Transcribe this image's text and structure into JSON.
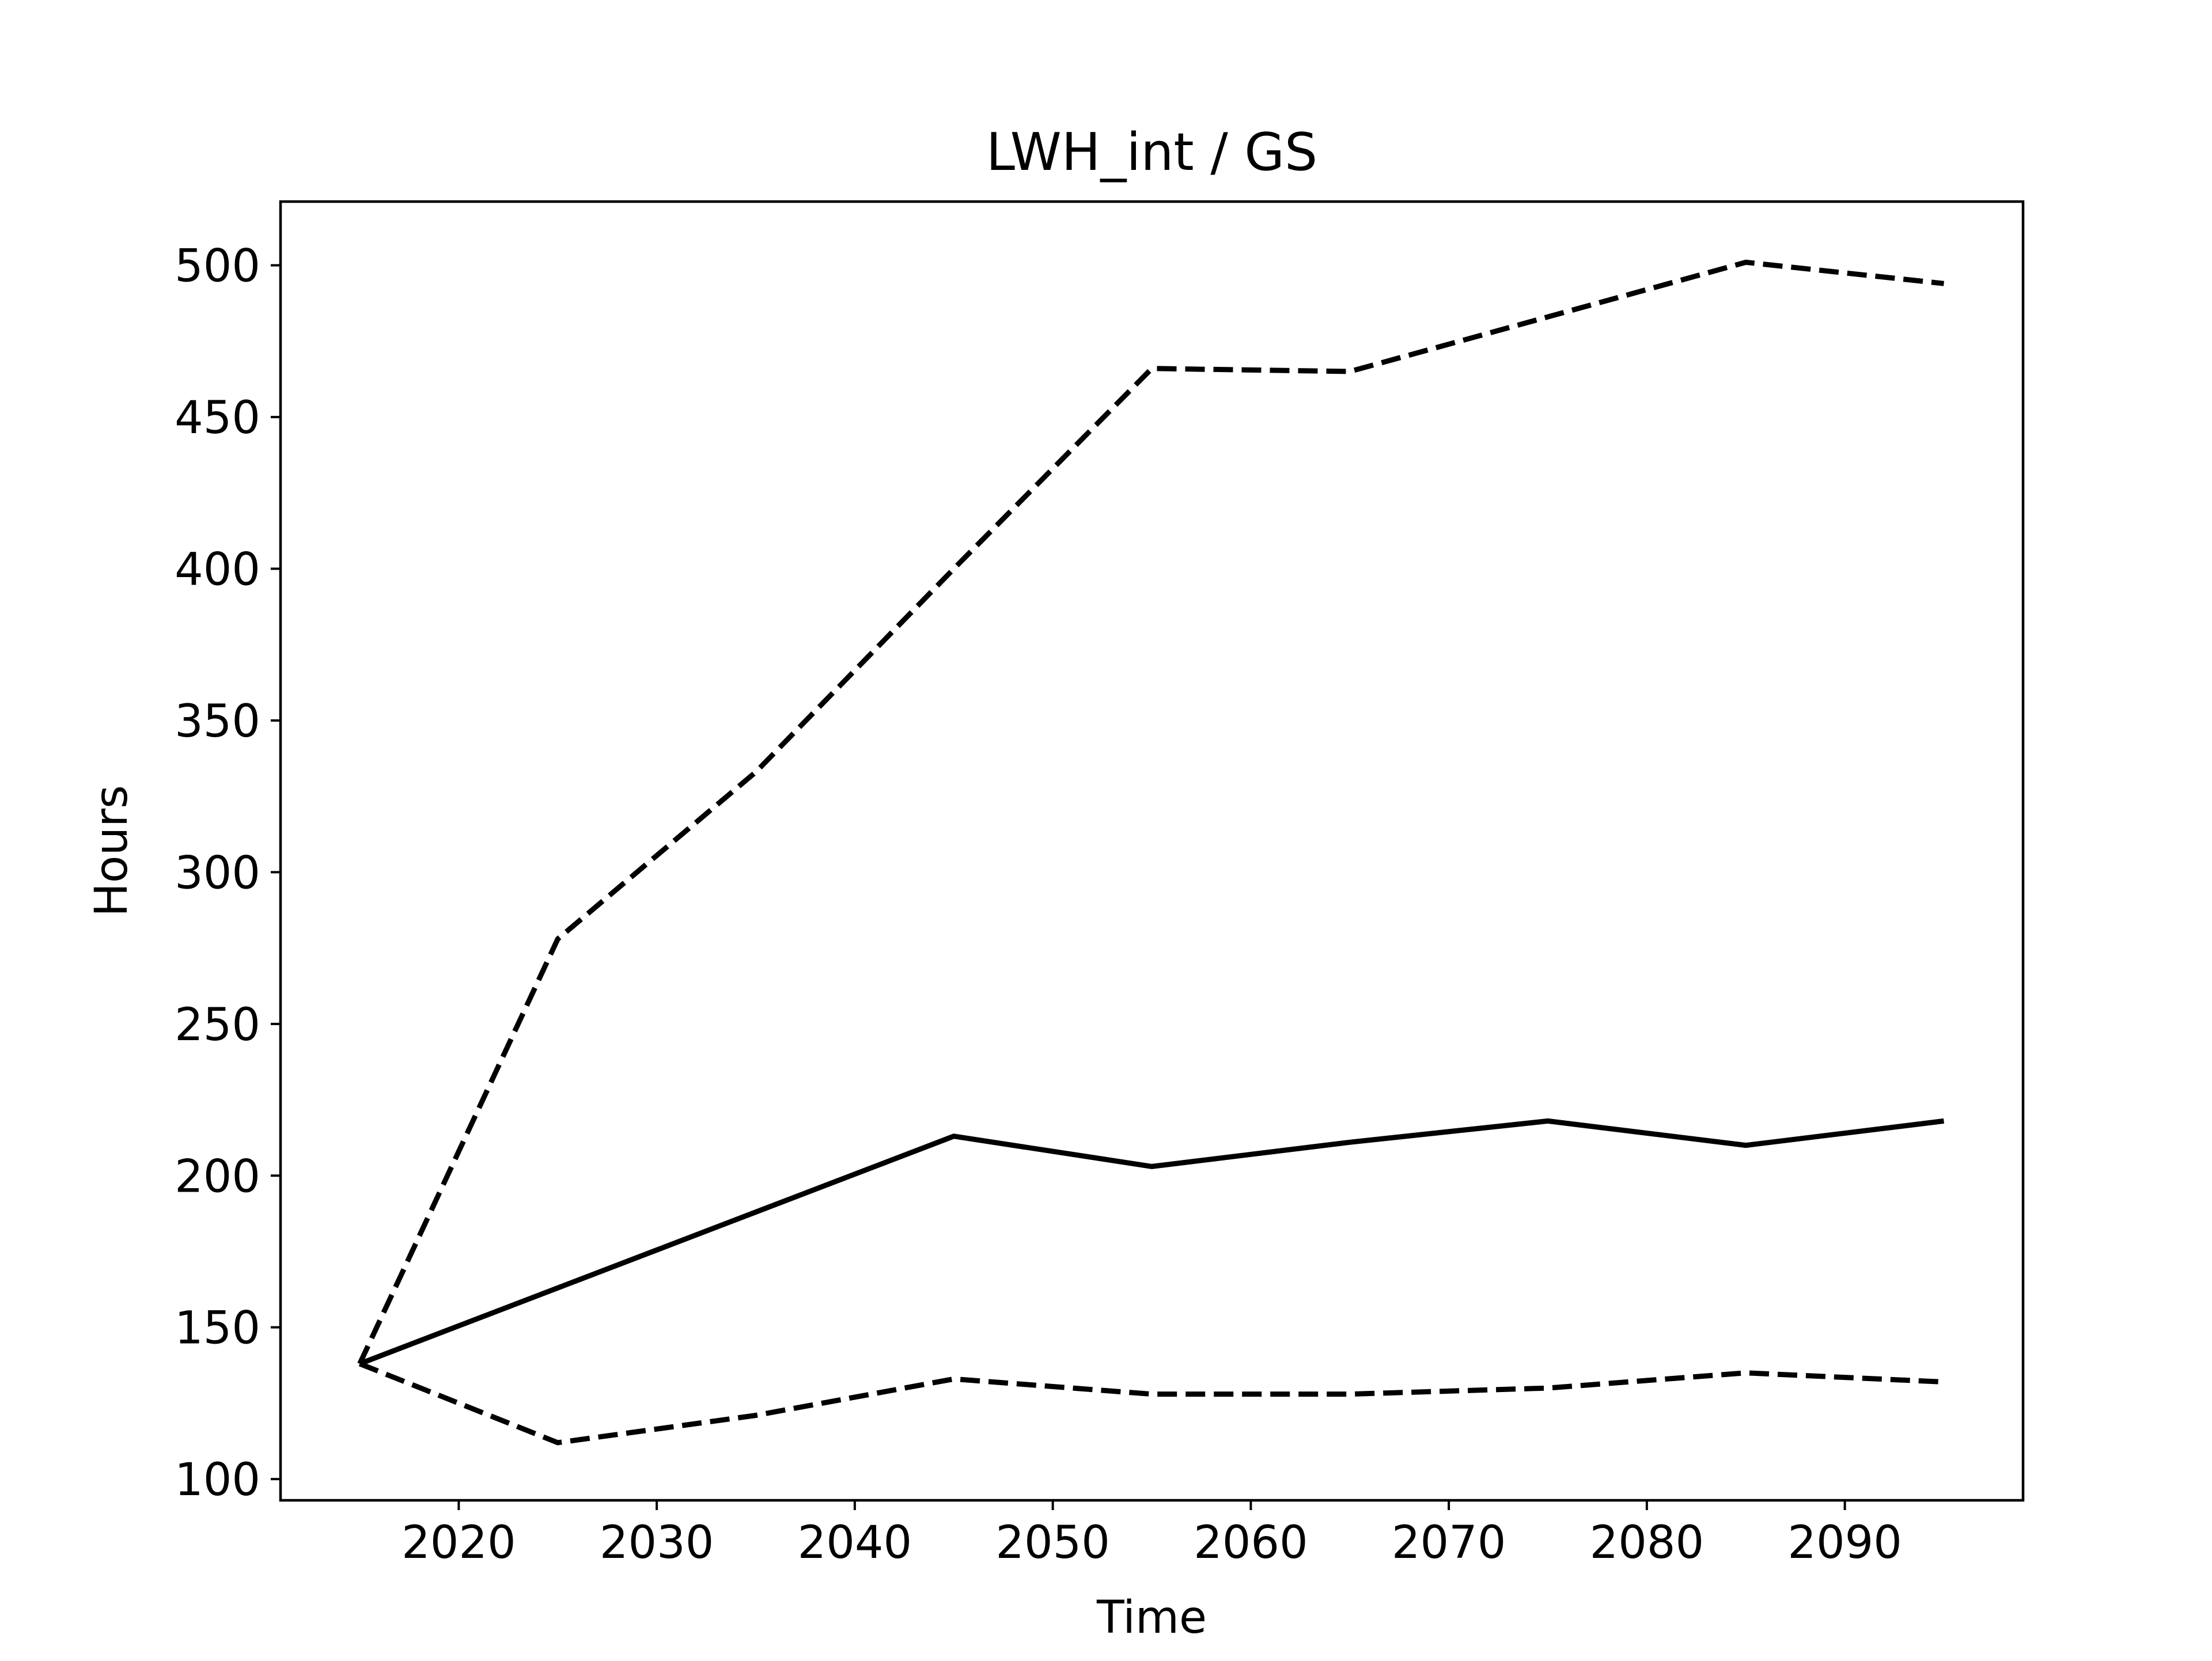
{
  "chart_data": {
    "type": "line",
    "title": "LWH_int / GS",
    "xlabel": "Time",
    "ylabel": "Hours",
    "xlim": [
      2011,
      2099
    ],
    "ylim": [
      93,
      521
    ],
    "xticks": [
      2020,
      2030,
      2040,
      2050,
      2060,
      2070,
      2080,
      2090
    ],
    "yticks": [
      100,
      150,
      200,
      250,
      300,
      350,
      400,
      450,
      500
    ],
    "grid": false,
    "legend": "none",
    "x": [
      2015,
      2025,
      2035,
      2045,
      2055,
      2065,
      2075,
      2085,
      2095
    ],
    "series": [
      {
        "style": "solid",
        "color": "#000000",
        "values": [
          138,
          163,
          188,
          213,
          203,
          211,
          218,
          210,
          218
        ]
      },
      {
        "style": "dashed",
        "color": "#000000",
        "values": [
          138,
          278,
          333,
          400,
          466,
          465,
          483,
          501,
          494
        ]
      },
      {
        "style": "dashed",
        "color": "#000000",
        "values": [
          138,
          112,
          121,
          133,
          128,
          128,
          130,
          135,
          132
        ]
      }
    ]
  }
}
